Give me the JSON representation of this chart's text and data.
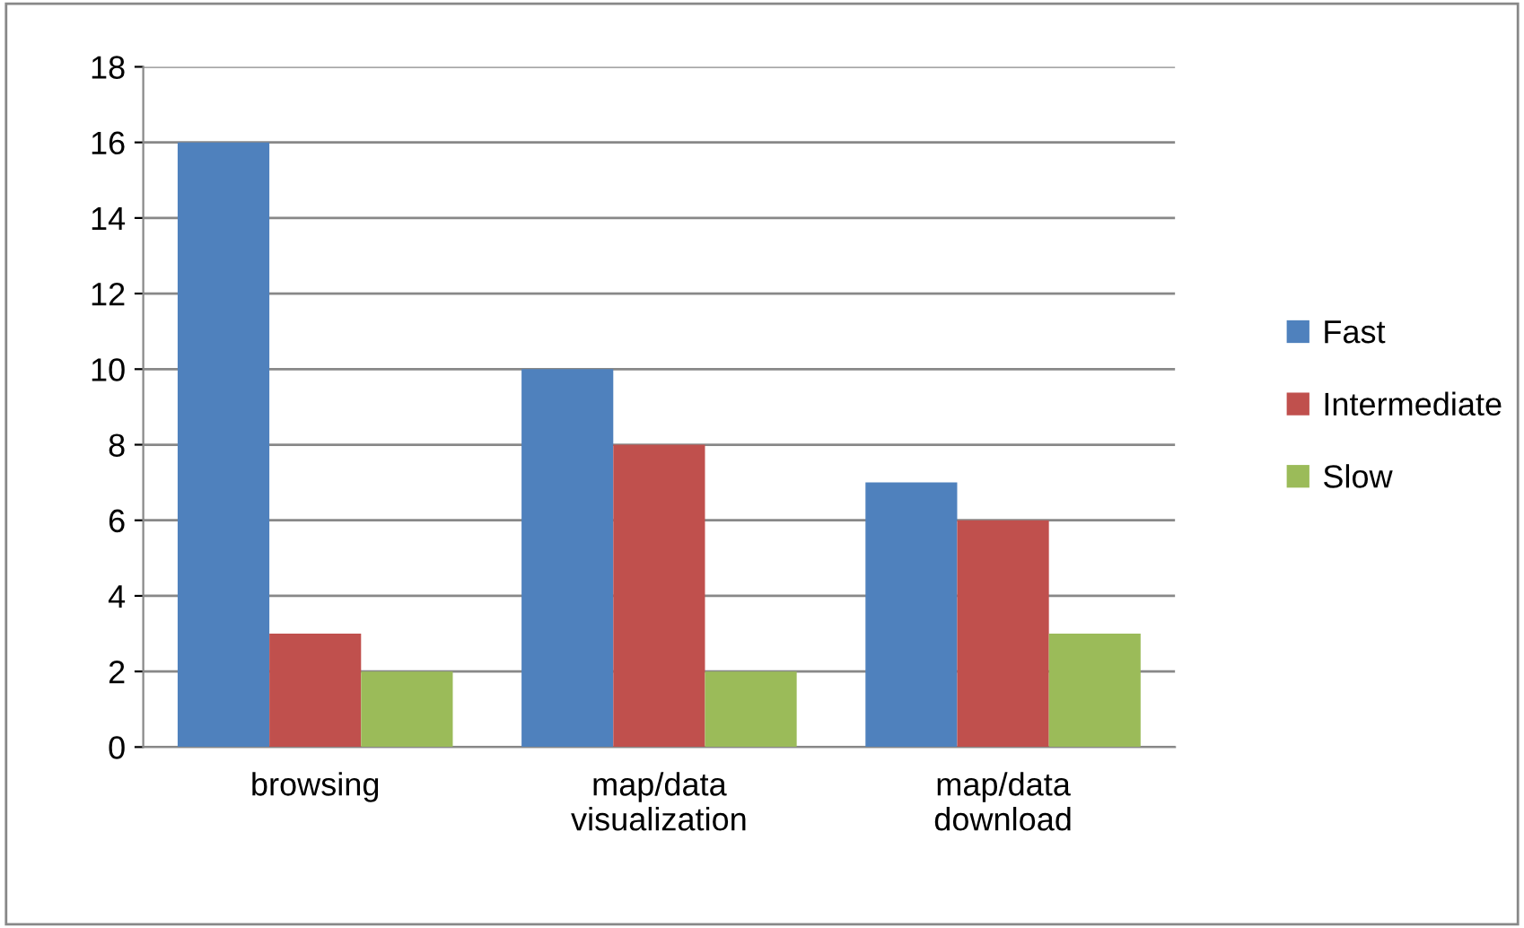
{
  "chart_data": {
    "type": "bar",
    "categories": [
      "browsing",
      "map/data\nvisualization",
      "map/data\ndownload"
    ],
    "series": [
      {
        "name": "Fast",
        "color": "#4f81bd",
        "values": [
          16,
          10,
          7
        ]
      },
      {
        "name": "Intermediate",
        "color": "#c0504d",
        "values": [
          3,
          8,
          6
        ]
      },
      {
        "name": "Slow",
        "color": "#9bbb59",
        "values": [
          2,
          2,
          3
        ]
      }
    ],
    "ylim": [
      0,
      18
    ],
    "yticks": [
      0,
      2,
      4,
      6,
      8,
      10,
      12,
      14,
      16,
      18
    ],
    "grid": "y",
    "legend": "right"
  }
}
